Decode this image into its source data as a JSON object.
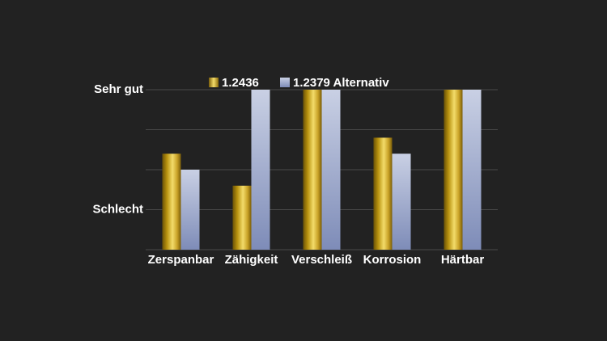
{
  "chart_data": {
    "type": "bar",
    "categories": [
      "Zerspanbar",
      "Zähigkeit",
      "Verschleiß",
      "Korrosion",
      "Härtbar"
    ],
    "series": [
      {
        "name": "1.2436",
        "values": [
          3.0,
          2.0,
          5.0,
          3.5,
          5.0
        ],
        "color": "#c9a227"
      },
      {
        "name": "1.2379 Alternativ",
        "values": [
          2.5,
          5.0,
          5.0,
          3.0,
          5.0
        ],
        "color": "#b5c0dc"
      }
    ],
    "ylim": [
      0,
      5
    ],
    "yticks": [
      {
        "value": 1.25,
        "label": "Schlecht"
      },
      {
        "value": 5,
        "label": "Sehr gut"
      }
    ],
    "grid": true,
    "legend_position": "top",
    "background": "#222222"
  }
}
